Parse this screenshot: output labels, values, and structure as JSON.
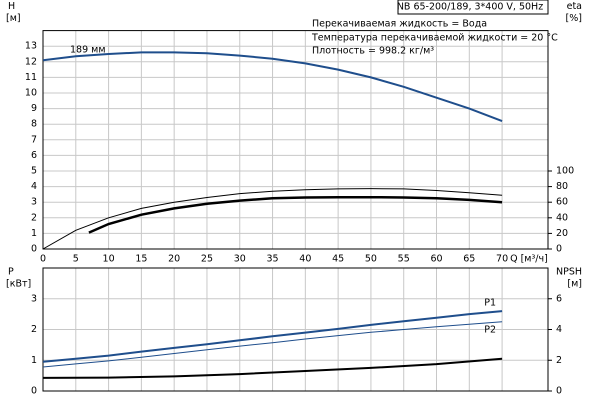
{
  "chart_data": [
    {
      "type": "line",
      "annotations": [
        "NB 65-200/189, 3*400 V, 50Hz",
        "Перекачиваемая жидкость = Вода",
        "Температура перекачиваемой жидкости = 20 °C",
        "Плотность = 998.2 кг/м³",
        "189 мм"
      ],
      "ylabel": "H",
      "yunit": "[м]",
      "y2label": "eta",
      "y2unit": "[%]",
      "xlabel": "Q [м³/ч]",
      "xlim": [
        0,
        77
      ],
      "xticks": [
        0,
        5,
        10,
        15,
        20,
        25,
        30,
        35,
        40,
        45,
        50,
        55,
        60,
        65,
        70
      ],
      "ylim": [
        0,
        14
      ],
      "yticks": [
        0,
        1,
        2,
        3,
        4,
        5,
        6,
        7,
        8,
        9,
        10,
        11,
        12,
        13
      ],
      "y2lim": [
        0,
        280
      ],
      "y2ticks": [
        0,
        20,
        40,
        60,
        80,
        100
      ],
      "grid": true,
      "series": [
        {
          "color": "#1f4e8c",
          "x": [
            0,
            5,
            10,
            15,
            20,
            25,
            30,
            35,
            40,
            45,
            50,
            55,
            60,
            65,
            70
          ],
          "values": [
            12.1,
            12.35,
            12.5,
            12.6,
            12.6,
            12.55,
            12.4,
            12.2,
            11.9,
            11.5,
            11.0,
            10.4,
            9.7,
            9.0,
            8.2
          ]
        },
        {
          "color": "#000000",
          "axis": "y2",
          "x": [
            0,
            5,
            10,
            15,
            20,
            25,
            30,
            35,
            40,
            45,
            50,
            55,
            60,
            65,
            70
          ],
          "values": [
            0,
            24,
            40,
            52,
            60,
            66,
            71,
            74,
            76,
            77,
            77.4,
            77,
            75,
            72,
            69
          ]
        },
        {
          "color": "#000000",
          "axis": "y2",
          "x": [
            7,
            10,
            15,
            20,
            25,
            30,
            35,
            40,
            45,
            50,
            55,
            60,
            65,
            70
          ],
          "values": [
            21,
            32,
            44,
            52,
            58,
            62,
            65,
            66,
            66.4,
            66.4,
            66,
            65,
            63,
            60
          ]
        }
      ]
    },
    {
      "type": "line",
      "ylabel": "P",
      "yunit": "[кВт]",
      "y2label": "NPSH",
      "y2unit": "[м]",
      "xlim": [
        0,
        77
      ],
      "ylim": [
        0,
        4
      ],
      "yticks": [
        0,
        1,
        2,
        3
      ],
      "y2lim": [
        0,
        8
      ],
      "y2ticks": [
        0,
        2,
        4,
        6
      ],
      "grid": true,
      "series": [
        {
          "name": "P1",
          "color": "#1f4e8c",
          "x": [
            0,
            5,
            10,
            15,
            20,
            25,
            30,
            35,
            40,
            45,
            50,
            55,
            60,
            65,
            70
          ],
          "values": [
            0.95,
            1.05,
            1.15,
            1.28,
            1.4,
            1.52,
            1.65,
            1.78,
            1.9,
            2.02,
            2.15,
            2.27,
            2.38,
            2.5,
            2.6
          ]
        },
        {
          "name": "P2",
          "color": "#1f4e8c",
          "x": [
            0,
            5,
            10,
            15,
            20,
            25,
            30,
            35,
            40,
            45,
            50,
            55,
            60,
            65,
            70
          ],
          "values": [
            0.78,
            0.88,
            0.98,
            1.1,
            1.22,
            1.34,
            1.46,
            1.57,
            1.69,
            1.8,
            1.91,
            2.0,
            2.09,
            2.17,
            2.25
          ]
        },
        {
          "color": "#000000",
          "axis": "y2",
          "x": [
            0,
            10,
            20,
            30,
            40,
            50,
            60,
            70
          ],
          "values": [
            0.85,
            0.87,
            0.95,
            1.1,
            1.3,
            1.5,
            1.75,
            2.1
          ]
        }
      ]
    }
  ]
}
